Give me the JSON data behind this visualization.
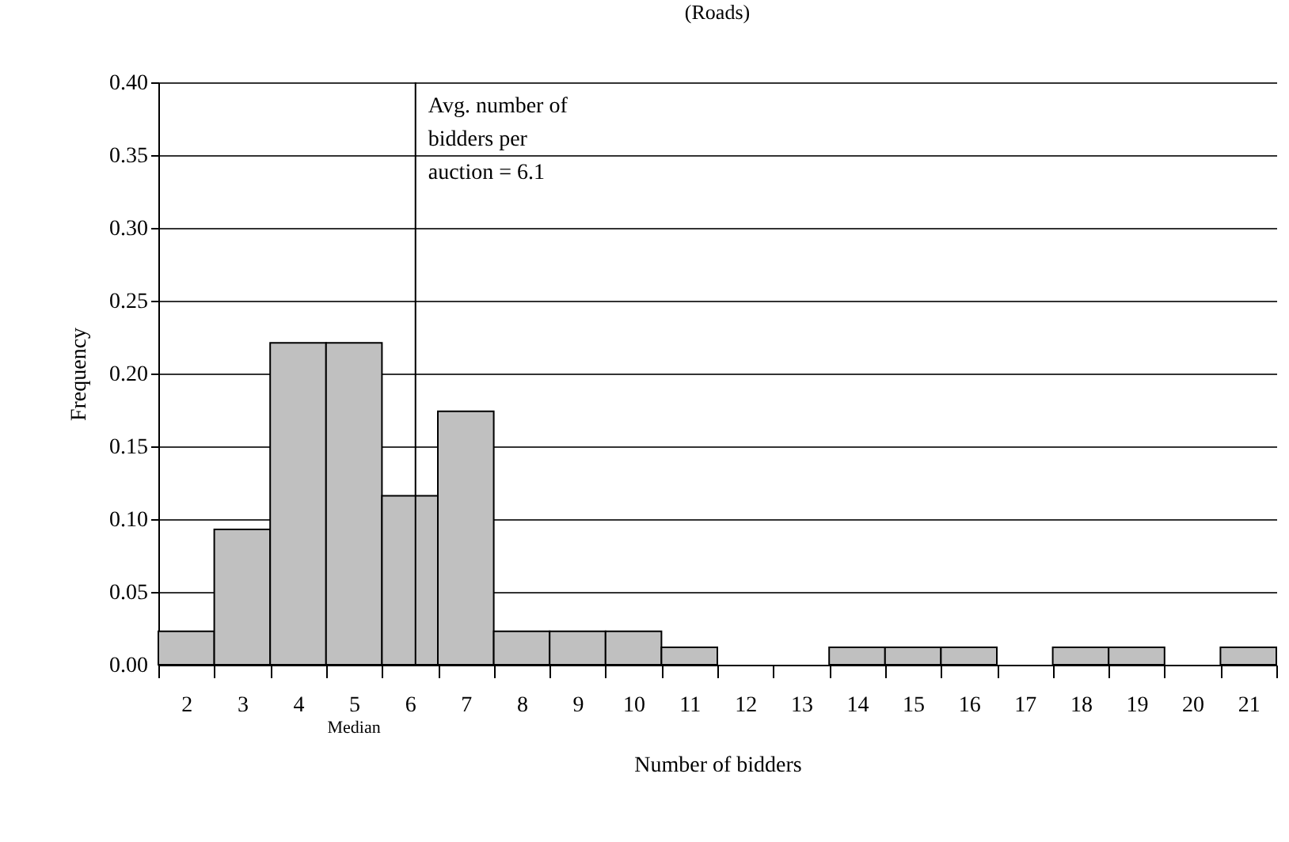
{
  "chart_data": {
    "type": "histogram",
    "title": "(Roads)",
    "xlabel": "Number of bidders",
    "ylabel": "Frequency",
    "bins": [
      1.5,
      2.5,
      3.5,
      4.5,
      5.5,
      6.5,
      7.5,
      8.5,
      9.5,
      10.5,
      11.5,
      12.5,
      13.5,
      14.5,
      15.5,
      16.5,
      17.5,
      18.5,
      19.5,
      20.5,
      21.5
    ],
    "values": [
      0.023,
      0.093,
      0.221,
      0.221,
      0.116,
      0.174,
      0.023,
      0.023,
      0.023,
      0.012,
      0,
      0,
      0.012,
      0.012,
      0.012,
      0,
      0.012,
      0.012,
      0,
      0.012
    ],
    "color": "#c0c0c0",
    "xlim": [
      1.5,
      21.5
    ],
    "xticks": [
      2,
      3,
      4,
      5,
      6,
      7,
      8,
      9,
      10,
      11,
      12,
      13,
      14,
      15,
      16,
      17,
      18,
      19,
      20,
      21,
      {
        "value": 1.5,
        "label": null
      },
      {
        "value": 2.5,
        "label": null
      },
      {
        "value": 3.5,
        "label": null
      },
      {
        "value": 4.5,
        "label": null
      },
      {
        "value": 5.5,
        "label": null
      },
      {
        "value": 6.5,
        "label": null
      },
      {
        "value": 7.5,
        "label": null
      },
      {
        "value": 8.5,
        "label": null
      },
      {
        "value": 9.5,
        "label": null
      },
      {
        "value": 10.5,
        "label": null
      },
      {
        "value": 11.5,
        "label": null
      },
      {
        "value": 12.5,
        "label": null
      },
      {
        "value": 13.5,
        "label": null
      },
      {
        "value": 14.5,
        "label": null
      },
      {
        "value": 15.5,
        "label": null
      },
      {
        "value": 16.5,
        "label": null
      },
      {
        "value": 17.5,
        "label": null
      },
      {
        "value": 18.5,
        "label": null
      },
      {
        "value": 19.5,
        "label": null
      },
      {
        "value": 20.5,
        "label": null
      },
      {
        "value": 21.5,
        "label": null
      }
    ],
    "ylim": [
      0,
      0.4
    ],
    "yticks": [
      {
        "value": 0,
        "label": "0.00"
      },
      {
        "value": 0.05,
        "label": "0.05"
      },
      {
        "value": 0.1,
        "label": "0.10"
      },
      {
        "value": 0.15,
        "label": "0.15"
      },
      {
        "value": 0.2,
        "label": "0.20"
      },
      {
        "value": 0.25,
        "label": "0.25"
      },
      {
        "value": 0.3,
        "label": "0.30"
      },
      {
        "value": 0.35,
        "label": "0.35"
      },
      {
        "value": 0.4,
        "label": "0.40"
      }
    ],
    "grid": "y",
    "ref_lines": [
      {
        "axis": "x",
        "value": 6.1,
        "label": "Avg. number of bidders per auction = 6.1"
      }
    ],
    "annotations": [
      "Median"
    ]
  }
}
